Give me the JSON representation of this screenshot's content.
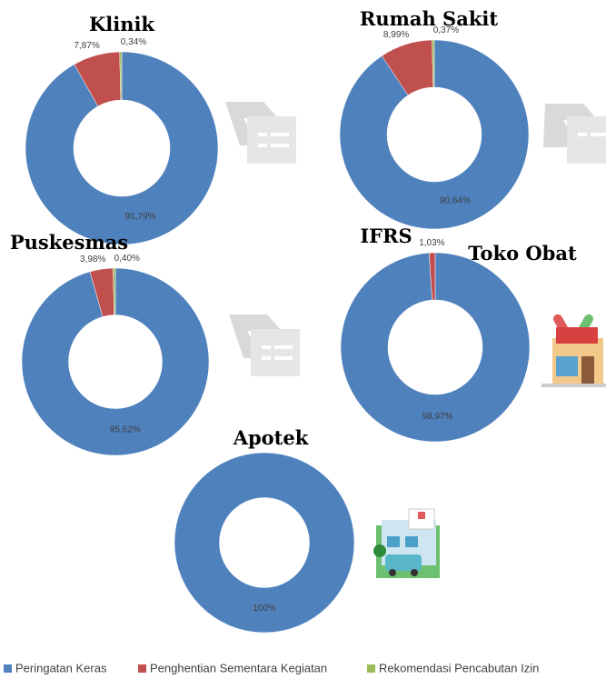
{
  "chart_data": [
    {
      "type": "donut",
      "title": "Klinik",
      "values": [
        91.79,
        7.87,
        0.34
      ],
      "value_labels": [
        "91,79%",
        "7,87%",
        "0,34%"
      ]
    },
    {
      "type": "donut",
      "title": "Rumah Sakit",
      "values": [
        90.64,
        8.99,
        0.37
      ],
      "value_labels": [
        "90,64%",
        "8,99%",
        "0,37%"
      ]
    },
    {
      "type": "donut",
      "title": "Puskesmas",
      "values": [
        95.62,
        3.98,
        0.4
      ],
      "value_labels": [
        "95,62%",
        "3,98%",
        "0,40%"
      ]
    },
    {
      "type": "donut",
      "title": "IFRS",
      "subtitle": "Toko Obat",
      "values": [
        98.97,
        1.03
      ],
      "value_labels": [
        "98,97%",
        "1,03%"
      ]
    },
    {
      "type": "donut",
      "title": "Apotek",
      "values": [
        100
      ],
      "value_labels": [
        "100%"
      ]
    }
  ],
  "legend": [
    {
      "name": "Peringatan Keras",
      "color": "#4f81bd"
    },
    {
      "name": "Penghentian Sementara Kegiatan",
      "color": "#c0504d"
    },
    {
      "name": "Rekomendasi Pencabutan Izin",
      "color": "#9bbb59"
    }
  ]
}
